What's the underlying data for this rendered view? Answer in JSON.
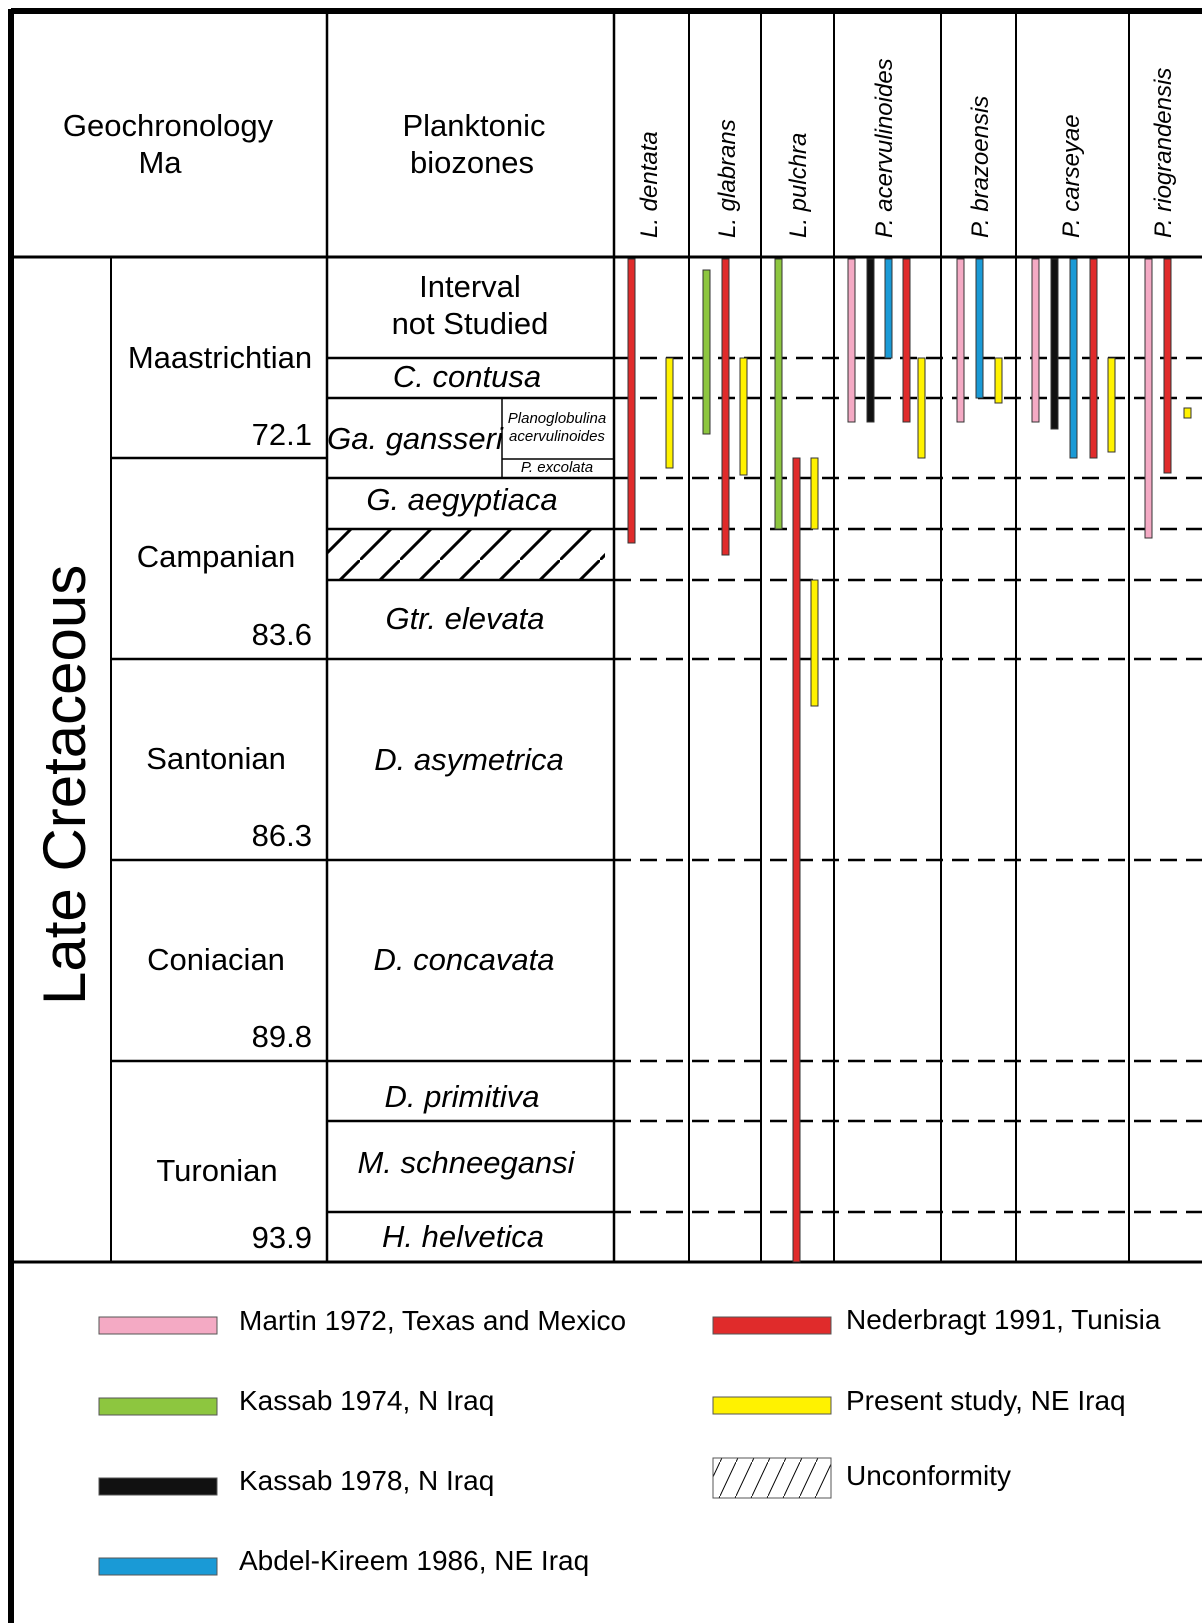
{
  "header": {
    "geochronology_lines": [
      "Geochronology",
      "Ma"
    ],
    "biozones_lines": [
      "Planktonic",
      "biozones"
    ]
  },
  "era": "Late Cretaceous",
  "stages": [
    {
      "name": "Maastrichtian",
      "age": "72.1"
    },
    {
      "name": "Campanian",
      "age": "83.6"
    },
    {
      "name": "Santonian",
      "age": "86.3"
    },
    {
      "name": "Coniacian",
      "age": "89.8"
    },
    {
      "name": "Turonian",
      "age": "93.9"
    }
  ],
  "biozones": [
    {
      "lines": [
        "Interval",
        "not Studied"
      ],
      "italic": false
    },
    {
      "lines": [
        "C. contusa"
      ],
      "italic": true
    },
    {
      "lines": [
        "Ga. gansseri"
      ],
      "italic": true,
      "subzones": [
        [
          "Planoglobulina",
          "acervulinoides"
        ],
        [
          "P. excolata"
        ]
      ]
    },
    {
      "lines": [
        "G. aegyptiaca"
      ],
      "italic": true
    },
    {
      "lines": [],
      "italic": false,
      "unconformity": true
    },
    {
      "lines": [
        "Gtr. elevata"
      ],
      "italic": true
    },
    {
      "lines": [
        "D. asymetrica"
      ],
      "italic": true
    },
    {
      "lines": [
        "D. concavata"
      ],
      "italic": true
    },
    {
      "lines": [
        "D. primitiva"
      ],
      "italic": true
    },
    {
      "lines": [
        "M. schneegansi"
      ],
      "italic": true
    },
    {
      "lines": [
        "H. helvetica"
      ],
      "italic": true
    }
  ],
  "species": [
    "L. dentata",
    "L. glabrans",
    "L. pulchra",
    "P. acervulinoides",
    "P. brazoensis",
    "P. carseyae",
    "P. riograndensis"
  ],
  "colors": {
    "martin": "#f4aac4",
    "kassab1974": "#8dc63f",
    "kassab1978": "#111111",
    "abdel": "#1a9ad6",
    "nederbragt": "#e02b2b",
    "present": "#fff200"
  },
  "legend": [
    {
      "label": "Martin 1972, Texas and Mexico",
      "key": "martin"
    },
    {
      "label": "Kassab 1974, N Iraq",
      "key": "kassab1974"
    },
    {
      "label": "Kassab 1978, N Iraq",
      "key": "kassab1978"
    },
    {
      "label": "Abdel-Kireem 1986, NE Iraq",
      "key": "abdel"
    },
    {
      "label": "Nederbragt 1991, Tunisia",
      "key": "nederbragt"
    },
    {
      "label": "Present study, NE Iraq",
      "key": "present"
    },
    {
      "label": "Unconformity",
      "key": "unconformity"
    }
  ]
}
